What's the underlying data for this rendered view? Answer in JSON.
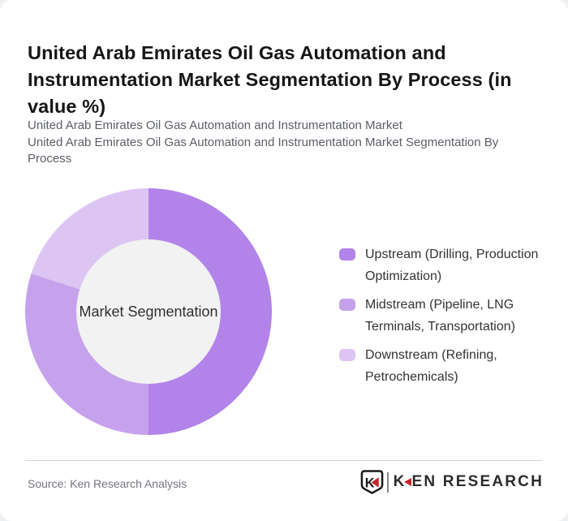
{
  "header": {
    "title": "United Arab Emirates Oil Gas Automation and Instrumentation Market Segmentation By Process (in value %)",
    "subtitle_lines": [
      "United Arab Emirates Oil Gas Automation and Instrumentation Market",
      "United Arab Emirates Oil Gas Automation and Instrumentation Market Segmentation By Process"
    ]
  },
  "chart_data": {
    "type": "pie",
    "variant": "donut",
    "title": "United Arab Emirates Oil Gas Automation and Instrumentation Market Segmentation By Process (in value %)",
    "unit": "value %",
    "center_label": "Market Segmentation",
    "start_angle_deg": 0,
    "direction": "clockwise",
    "legend_position": "right",
    "data_labels_visible": false,
    "values_are_estimates_from_arc_geometry": true,
    "inner_circle_color": "#f2f2f2",
    "segments": [
      {
        "label": "Upstream (Drilling, Production Optimization)",
        "value": 50,
        "color": "#b284e9"
      },
      {
        "label": "Midstream (Pipeline, LNG Terminals, Transportation)",
        "value": 30,
        "color": "#c6a2ec"
      },
      {
        "label": "Downstream (Refining, Petrochemicals)",
        "value": 20,
        "color": "#ddc5f3"
      }
    ]
  },
  "footer": {
    "source_text": "Source: Ken Research Analysis",
    "logo": {
      "icon": "ken-research-shield-k-icon",
      "badge_letter": "K",
      "wordmark_first_letter": "K",
      "wordmark_rest": "EN RESEARCH",
      "red": "#c9242b",
      "dark": "#2c2c2e"
    }
  }
}
